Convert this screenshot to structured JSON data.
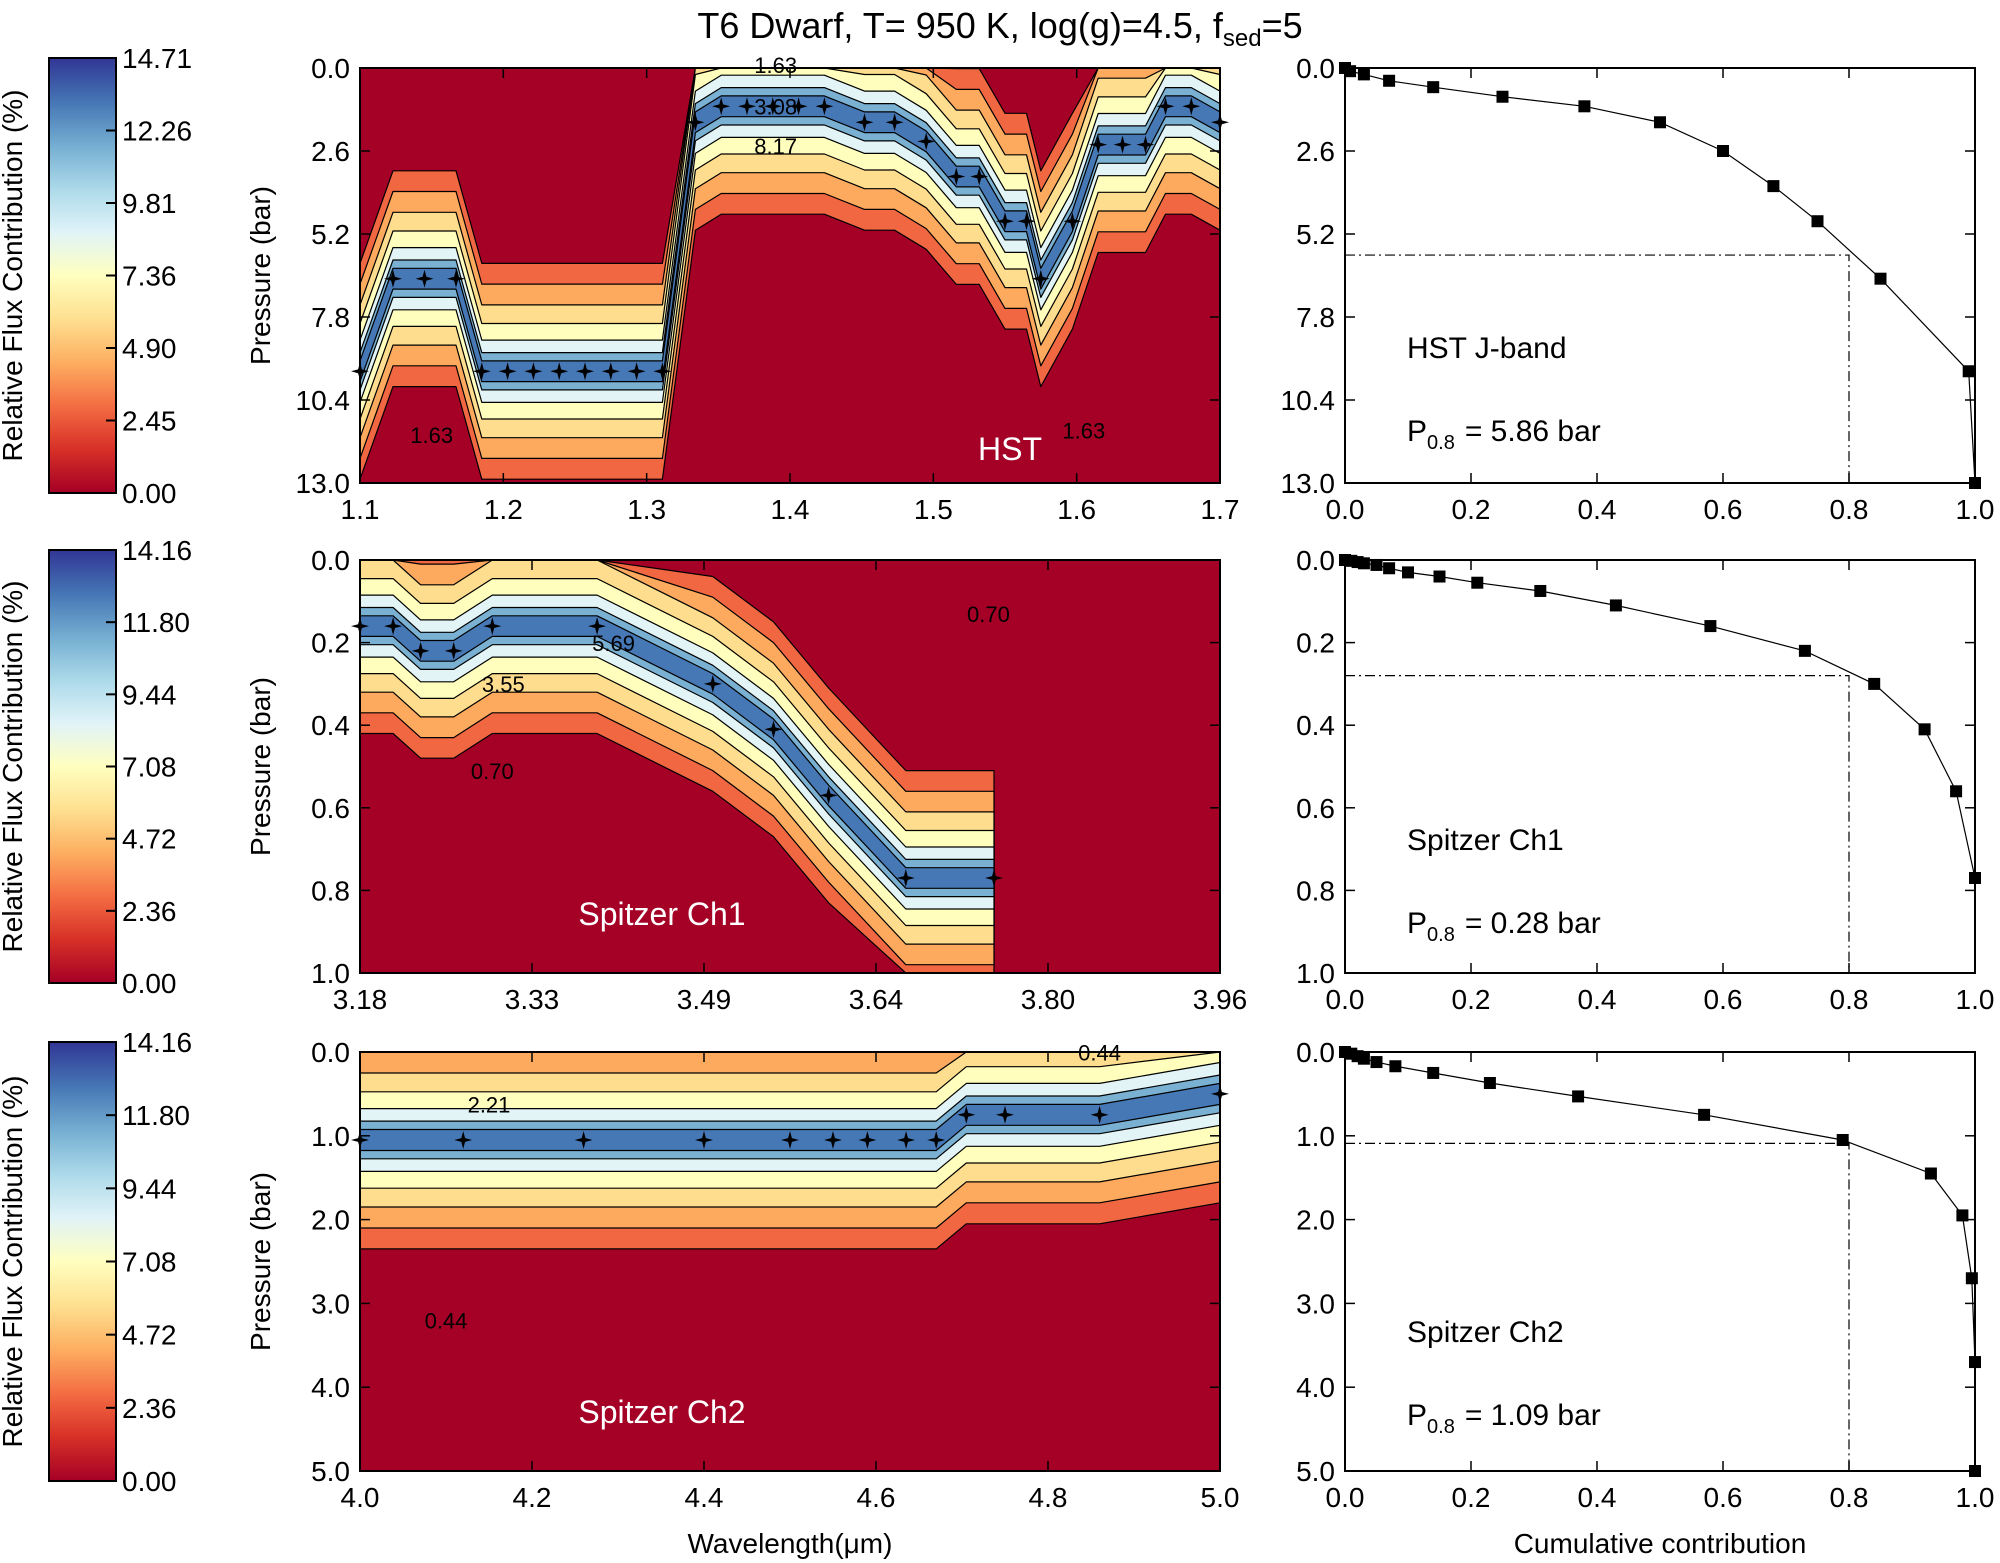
{
  "title": {
    "main": "T6 Dwarf, T= 950 K, log(g)=4.5, f",
    "sub": "sed",
    "tail": "=5"
  },
  "colorbar_label": "Relative Flux Contribution (%)",
  "colors": {
    "ramp": [
      "#a50026",
      "#d73027",
      "#f46d43",
      "#fdae61",
      "#fee090",
      "#ffffbf",
      "#e0f3f8",
      "#abd9e9",
      "#74add1",
      "#4575b4",
      "#313695"
    ]
  },
  "chart_data": [
    {
      "type": "heatmap",
      "name": "HST",
      "inset_label": "HST",
      "colorbar_ticks": [
        "14.71",
        "12.26",
        "9.81",
        "7.36",
        "4.90",
        "2.45",
        "0.00"
      ],
      "colorbar_range": [
        0,
        14.71
      ],
      "xlim": [
        1.1,
        1.7
      ],
      "xticks": [
        "1.1",
        "1.2",
        "1.3",
        "1.4",
        "1.5",
        "1.6",
        "1.7"
      ],
      "ylim": [
        0,
        13.0
      ],
      "yticks": [
        "0.0",
        "2.6",
        "5.2",
        "7.8",
        "10.4",
        "13.0"
      ],
      "ylabel": "Pressure (bar)",
      "contour_labels": [
        {
          "text": "1.63",
          "x": 1.39,
          "y": 0.15
        },
        {
          "text": "3.08",
          "x": 1.39,
          "y": 1.45
        },
        {
          "text": "8.17",
          "x": 1.39,
          "y": 2.7
        },
        {
          "text": "1.63",
          "x": 1.15,
          "y": 11.75
        },
        {
          "text": "1.63",
          "x": 1.605,
          "y": 11.6
        }
      ],
      "peaks": [
        [
          1.1,
          9.5
        ],
        [
          1.123,
          6.6
        ],
        [
          1.145,
          6.6
        ],
        [
          1.167,
          6.6
        ],
        [
          1.185,
          9.5
        ],
        [
          1.203,
          9.5
        ],
        [
          1.221,
          9.5
        ],
        [
          1.239,
          9.5
        ],
        [
          1.257,
          9.5
        ],
        [
          1.275,
          9.5
        ],
        [
          1.293,
          9.5
        ],
        [
          1.311,
          9.5
        ],
        [
          1.334,
          1.7
        ],
        [
          1.352,
          1.2
        ],
        [
          1.37,
          1.2
        ],
        [
          1.388,
          1.2
        ],
        [
          1.406,
          1.2
        ],
        [
          1.424,
          1.2
        ],
        [
          1.452,
          1.7
        ],
        [
          1.473,
          1.7
        ],
        [
          1.495,
          2.3
        ],
        [
          1.516,
          3.4
        ],
        [
          1.532,
          3.4
        ],
        [
          1.55,
          4.8
        ],
        [
          1.565,
          4.8
        ],
        [
          1.575,
          6.6
        ],
        [
          1.597,
          4.8
        ],
        [
          1.615,
          2.4
        ],
        [
          1.632,
          2.4
        ],
        [
          1.648,
          2.4
        ],
        [
          1.662,
          1.2
        ],
        [
          1.68,
          1.2
        ],
        [
          1.7,
          1.7
        ]
      ],
      "cumulative": {
        "name": "HST J-band",
        "p08_label": "P",
        "p08_sub": "0.8",
        "p08_value": "=  5.86 bar",
        "p08": 5.86,
        "points": [
          [
            0.0,
            0.0
          ],
          [
            0.008,
            0.1
          ],
          [
            0.03,
            0.2
          ],
          [
            0.07,
            0.4
          ],
          [
            0.14,
            0.6
          ],
          [
            0.25,
            0.9
          ],
          [
            0.38,
            1.2
          ],
          [
            0.5,
            1.7
          ],
          [
            0.6,
            2.6
          ],
          [
            0.68,
            3.7
          ],
          [
            0.75,
            4.8
          ],
          [
            0.85,
            6.6
          ],
          [
            0.99,
            9.5
          ],
          [
            1.0,
            13.0
          ]
        ],
        "xlim": [
          0,
          1.0
        ],
        "xticks": [
          "0.0",
          "0.2",
          "0.4",
          "0.6",
          "0.8",
          "1.0"
        ],
        "ylim": [
          0,
          13.0
        ],
        "yticks": [
          "0.0",
          "2.6",
          "5.2",
          "7.8",
          "10.4",
          "13.0"
        ]
      }
    },
    {
      "type": "heatmap",
      "name": "Spitzer Ch1",
      "inset_label": "Spitzer Ch1",
      "colorbar_ticks": [
        "14.16",
        "11.80",
        "9.44",
        "7.08",
        "4.72",
        "2.36",
        "0.00"
      ],
      "colorbar_range": [
        0,
        14.16
      ],
      "xlim": [
        3.18,
        3.96
      ],
      "xticks": [
        "3.18",
        "3.33",
        "3.49",
        "3.64",
        "3.80",
        "3.96"
      ],
      "ylim": [
        0,
        1.0
      ],
      "yticks": [
        "0.0",
        "0.2",
        "0.4",
        "0.6",
        "0.8",
        "1.0"
      ],
      "ylabel": "Pressure (bar)",
      "contour_labels": [
        {
          "text": "0.70",
          "x": 3.75,
          "y": 0.15
        },
        {
          "text": "5.69",
          "x": 3.41,
          "y": 0.22
        },
        {
          "text": "3.55",
          "x": 3.31,
          "y": 0.32
        },
        {
          "text": "0.70",
          "x": 3.3,
          "y": 0.53
        }
      ],
      "peaks": [
        [
          3.18,
          0.16
        ],
        [
          3.21,
          0.16
        ],
        [
          3.235,
          0.22
        ],
        [
          3.265,
          0.22
        ],
        [
          3.3,
          0.16
        ],
        [
          3.395,
          0.16
        ],
        [
          3.5,
          0.3
        ],
        [
          3.555,
          0.41
        ],
        [
          3.605,
          0.57
        ],
        [
          3.675,
          0.77
        ],
        [
          3.755,
          0.77
        ]
      ],
      "cumulative": {
        "name": "Spitzer Ch1",
        "p08_label": "P",
        "p08_sub": "0.8",
        "p08_value": "=  0.28 bar",
        "p08": 0.28,
        "points": [
          [
            0.0,
            0.0
          ],
          [
            0.01,
            0.002
          ],
          [
            0.02,
            0.005
          ],
          [
            0.03,
            0.008
          ],
          [
            0.05,
            0.012
          ],
          [
            0.07,
            0.02
          ],
          [
            0.1,
            0.03
          ],
          [
            0.15,
            0.04
          ],
          [
            0.21,
            0.055
          ],
          [
            0.31,
            0.075
          ],
          [
            0.43,
            0.11
          ],
          [
            0.58,
            0.16
          ],
          [
            0.73,
            0.22
          ],
          [
            0.84,
            0.3
          ],
          [
            0.92,
            0.41
          ],
          [
            0.97,
            0.56
          ],
          [
            1.0,
            0.77
          ]
        ],
        "xlim": [
          0,
          1.0
        ],
        "xticks": [
          "0.0",
          "0.2",
          "0.4",
          "0.6",
          "0.8",
          "1.0"
        ],
        "ylim": [
          0,
          1.0
        ],
        "yticks": [
          "0.0",
          "0.2",
          "0.4",
          "0.6",
          "0.8",
          "1.0"
        ]
      }
    },
    {
      "type": "heatmap",
      "name": "Spitzer Ch2",
      "inset_label": "Spitzer Ch2",
      "colorbar_ticks": [
        "14.16",
        "11.80",
        "9.44",
        "7.08",
        "4.72",
        "2.36",
        "0.00"
      ],
      "colorbar_range": [
        0,
        14.16
      ],
      "xlim": [
        4.0,
        5.0
      ],
      "xticks": [
        "4.0",
        "4.2",
        "4.4",
        "4.6",
        "4.8",
        "5.0"
      ],
      "xlabel": "Wavelength(μm)",
      "ylim": [
        0,
        5.0
      ],
      "yticks": [
        "0.0",
        "1.0",
        "2.0",
        "3.0",
        "4.0",
        "5.0"
      ],
      "ylabel": "Pressure (bar)",
      "contour_labels": [
        {
          "text": "0.44",
          "x": 4.86,
          "y": 0.1
        },
        {
          "text": "2.21",
          "x": 4.15,
          "y": 0.72
        },
        {
          "text": "0.44",
          "x": 4.1,
          "y": 3.3
        }
      ],
      "peaks": [
        [
          4.0,
          1.05
        ],
        [
          4.12,
          1.05
        ],
        [
          4.26,
          1.05
        ],
        [
          4.4,
          1.05
        ],
        [
          4.5,
          1.05
        ],
        [
          4.55,
          1.05
        ],
        [
          4.59,
          1.05
        ],
        [
          4.635,
          1.05
        ],
        [
          4.67,
          1.05
        ],
        [
          4.705,
          0.75
        ],
        [
          4.75,
          0.75
        ],
        [
          4.86,
          0.75
        ],
        [
          5.0,
          0.5
        ]
      ],
      "cumulative": {
        "name": "Spitzer Ch2",
        "p08_label": "P",
        "p08_sub": "0.8",
        "p08_value": "=  1.09 bar",
        "p08": 1.09,
        "points": [
          [
            0.0,
            0.0
          ],
          [
            0.01,
            0.02
          ],
          [
            0.02,
            0.05
          ],
          [
            0.03,
            0.08
          ],
          [
            0.05,
            0.12
          ],
          [
            0.08,
            0.17
          ],
          [
            0.14,
            0.25
          ],
          [
            0.23,
            0.37
          ],
          [
            0.37,
            0.53
          ],
          [
            0.57,
            0.75
          ],
          [
            0.79,
            1.05
          ],
          [
            0.93,
            1.45
          ],
          [
            0.98,
            1.95
          ],
          [
            0.995,
            2.7
          ],
          [
            1.0,
            3.7
          ],
          [
            1.0,
            5.0
          ]
        ],
        "xlim": [
          0,
          1.0
        ],
        "xticks": [
          "0.0",
          "0.2",
          "0.4",
          "0.6",
          "0.8",
          "1.0"
        ],
        "xlabel": "Cumulative contribution",
        "ylim": [
          0,
          5.0
        ],
        "yticks": [
          "0.0",
          "1.0",
          "2.0",
          "3.0",
          "4.0",
          "5.0"
        ]
      }
    }
  ]
}
